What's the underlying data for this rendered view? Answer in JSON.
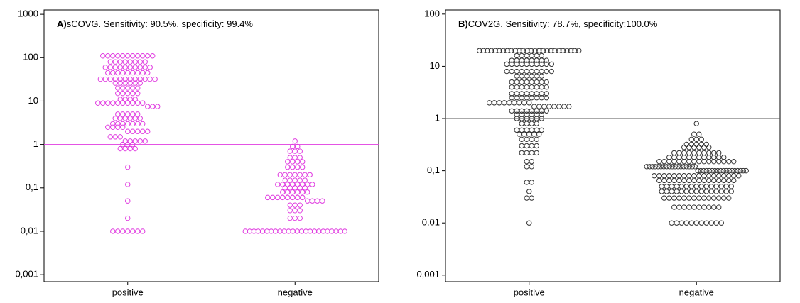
{
  "chart_data": [
    {
      "type": "dotplot",
      "panel": "A)",
      "title": "sCOVG. Sensitivity: 90.5%, specificity: 99.4%",
      "categories": [
        "positive",
        "negative"
      ],
      "color": "#e03ce0",
      "log_scale": true,
      "ylim": [
        0.00069,
        1259
      ],
      "yticks": [
        {
          "value": 0.001,
          "label": "0,001"
        },
        {
          "value": 0.01,
          "label": "0,01"
        },
        {
          "value": 0.1,
          "label": "0,1"
        },
        1,
        10,
        100,
        1000
      ],
      "reference_line": 1,
      "reference_color": "#e03ce0",
      "values": [
        [
          110,
          110,
          110,
          110,
          110,
          110,
          110,
          110,
          110,
          110,
          110,
          80,
          80,
          80,
          80,
          80,
          80,
          80,
          80,
          60,
          60,
          60,
          60,
          60,
          60,
          60,
          60,
          60,
          60,
          45,
          45,
          45,
          45,
          45,
          45,
          45,
          45,
          45,
          32,
          32,
          32,
          32,
          32,
          32,
          32,
          32,
          32,
          32,
          32,
          32,
          26,
          26,
          26,
          26,
          26,
          26,
          20,
          20,
          20,
          20,
          20,
          15,
          15,
          15,
          15,
          15,
          11,
          11,
          11,
          11,
          9,
          9,
          9,
          9,
          9,
          9,
          9,
          9,
          9,
          9,
          7.5,
          7.5,
          7.5,
          5,
          5,
          5,
          5,
          5,
          4,
          4,
          4,
          4,
          4,
          4,
          3,
          3,
          3,
          3,
          3,
          3,
          3,
          2.5,
          2.5,
          2.5,
          2.5,
          2,
          2,
          2,
          2,
          2,
          1.5,
          1.5,
          1.5,
          1.2,
          1.2,
          1.2,
          1.2,
          1.2,
          1,
          1,
          1,
          0.8,
          0.8,
          0.8,
          0.8,
          0.3,
          0.12,
          0.05,
          0.02,
          0.01,
          0.01,
          0.01,
          0.01,
          0.01,
          0.01,
          0.01
        ],
        [
          1.2,
          0.9,
          0.9,
          0.7,
          0.7,
          0.7,
          0.5,
          0.5,
          0.5,
          0.4,
          0.4,
          0.4,
          0.4,
          0.3,
          0.3,
          0.3,
          0.3,
          0.2,
          0.2,
          0.2,
          0.2,
          0.2,
          0.2,
          0.2,
          0.15,
          0.15,
          0.15,
          0.15,
          0.15,
          0.12,
          0.12,
          0.12,
          0.12,
          0.12,
          0.12,
          0.12,
          0.12,
          0.1,
          0.1,
          0.1,
          0.1,
          0.1,
          0.08,
          0.08,
          0.08,
          0.08,
          0.08,
          0.08,
          0.06,
          0.06,
          0.06,
          0.06,
          0.06,
          0.06,
          0.06,
          0.06,
          0.05,
          0.05,
          0.05,
          0.05,
          0.04,
          0.04,
          0.04,
          0.03,
          0.03,
          0.03,
          0.02,
          0.02,
          0.02,
          0.01,
          0.01,
          0.01,
          0.01,
          0.01,
          0.01,
          0.01,
          0.01,
          0.01,
          0.01,
          0.01,
          0.01,
          0.01,
          0.01,
          0.01,
          0.01,
          0.01,
          0.01,
          0.01,
          0.01,
          0.01,
          0.01,
          0.01,
          0.01
        ]
      ]
    },
    {
      "type": "dotplot",
      "panel": "B)",
      "title": "COV2G. Sensitivity: 78.7%, specificity:100.0%",
      "categories": [
        "positive",
        "negative"
      ],
      "color": "#333333",
      "log_scale": true,
      "ylim": [
        0.00075,
        120
      ],
      "yticks": [
        {
          "value": 0.001,
          "label": "0,001"
        },
        {
          "value": 0.01,
          "label": "0,01"
        },
        {
          "value": 0.1,
          "label": "0,1"
        },
        1,
        10,
        100
      ],
      "reference_line": 1,
      "reference_color": "#555555",
      "values": [
        [
          20,
          20,
          20,
          20,
          20,
          20,
          20,
          20,
          20,
          20,
          20,
          20,
          20,
          20,
          20,
          20,
          20,
          20,
          20,
          20,
          20,
          20,
          20,
          20,
          20,
          20,
          16,
          16,
          16,
          16,
          16,
          16,
          13,
          13,
          13,
          13,
          13,
          13,
          13,
          13,
          11,
          11,
          11,
          11,
          11,
          11,
          11,
          11,
          11,
          11,
          8,
          8,
          8,
          8,
          8,
          8,
          8,
          8,
          8,
          8,
          6.5,
          6.5,
          6.5,
          6.5,
          6.5,
          6.5,
          5,
          5,
          5,
          5,
          5,
          5,
          5,
          5,
          4,
          4,
          4,
          4,
          4,
          4,
          4,
          4,
          3,
          3,
          3,
          3,
          3,
          3,
          3,
          3,
          2.5,
          2.5,
          2.5,
          2.5,
          2.5,
          2.5,
          2.5,
          2.5,
          2,
          2,
          2,
          2,
          2,
          2,
          2,
          2,
          2,
          1.7,
          1.7,
          1.7,
          1.7,
          1.7,
          1.7,
          1.7,
          1.7,
          1.4,
          1.4,
          1.4,
          1.4,
          1.4,
          1.4,
          1.4,
          1.4,
          1.2,
          1.2,
          1.2,
          1.2,
          1.2,
          1.2,
          1,
          1,
          1,
          1,
          1,
          1,
          0.8,
          0.8,
          0.8,
          0.8,
          0.6,
          0.6,
          0.6,
          0.6,
          0.6,
          0.6,
          0.5,
          0.5,
          0.5,
          0.5,
          0.5,
          0.4,
          0.4,
          0.4,
          0.4,
          0.3,
          0.3,
          0.3,
          0.3,
          0.22,
          0.22,
          0.22,
          0.22,
          0.15,
          0.15,
          0.12,
          0.12,
          0.06,
          0.06,
          0.04,
          0.03,
          0.03,
          0.01
        ],
        [
          0.8,
          0.5,
          0.5,
          0.4,
          0.4,
          0.4,
          0.32,
          0.32,
          0.32,
          0.32,
          0.32,
          0.28,
          0.28,
          0.28,
          0.28,
          0.28,
          0.28,
          0.22,
          0.22,
          0.22,
          0.22,
          0.22,
          0.22,
          0.22,
          0.22,
          0.22,
          0.22,
          0.18,
          0.18,
          0.18,
          0.18,
          0.18,
          0.18,
          0.18,
          0.18,
          0.18,
          0.18,
          0.18,
          0.18,
          0.15,
          0.15,
          0.15,
          0.15,
          0.15,
          0.15,
          0.15,
          0.15,
          0.15,
          0.15,
          0.15,
          0.15,
          0.15,
          0.15,
          0.15,
          0.15,
          0.12,
          0.12,
          0.12,
          0.12,
          0.12,
          0.12,
          0.12,
          0.12,
          0.12,
          0.12,
          0.12,
          0.12,
          0.12,
          0.12,
          0.12,
          0.12,
          0.12,
          0.12,
          0.1,
          0.1,
          0.1,
          0.1,
          0.1,
          0.1,
          0.1,
          0.1,
          0.1,
          0.1,
          0.1,
          0.1,
          0.1,
          0.1,
          0.1,
          0.1,
          0.1,
          0.1,
          0.08,
          0.08,
          0.08,
          0.08,
          0.08,
          0.08,
          0.08,
          0.08,
          0.08,
          0.08,
          0.08,
          0.08,
          0.08,
          0.08,
          0.08,
          0.08,
          0.08,
          0.08,
          0.065,
          0.065,
          0.065,
          0.065,
          0.065,
          0.065,
          0.065,
          0.065,
          0.065,
          0.065,
          0.065,
          0.065,
          0.065,
          0.065,
          0.065,
          0.065,
          0.05,
          0.05,
          0.05,
          0.05,
          0.05,
          0.05,
          0.05,
          0.05,
          0.05,
          0.05,
          0.05,
          0.05,
          0.05,
          0.05,
          0.05,
          0.04,
          0.04,
          0.04,
          0.04,
          0.04,
          0.04,
          0.04,
          0.04,
          0.04,
          0.04,
          0.04,
          0.04,
          0.04,
          0.04,
          0.04,
          0.03,
          0.03,
          0.03,
          0.03,
          0.03,
          0.03,
          0.03,
          0.03,
          0.03,
          0.03,
          0.03,
          0.03,
          0.03,
          0.03,
          0.02,
          0.02,
          0.02,
          0.02,
          0.02,
          0.02,
          0.02,
          0.02,
          0.02,
          0.02,
          0.01,
          0.01,
          0.01,
          0.01,
          0.01,
          0.01,
          0.01,
          0.01,
          0.01,
          0.01,
          0.01
        ]
      ]
    }
  ]
}
